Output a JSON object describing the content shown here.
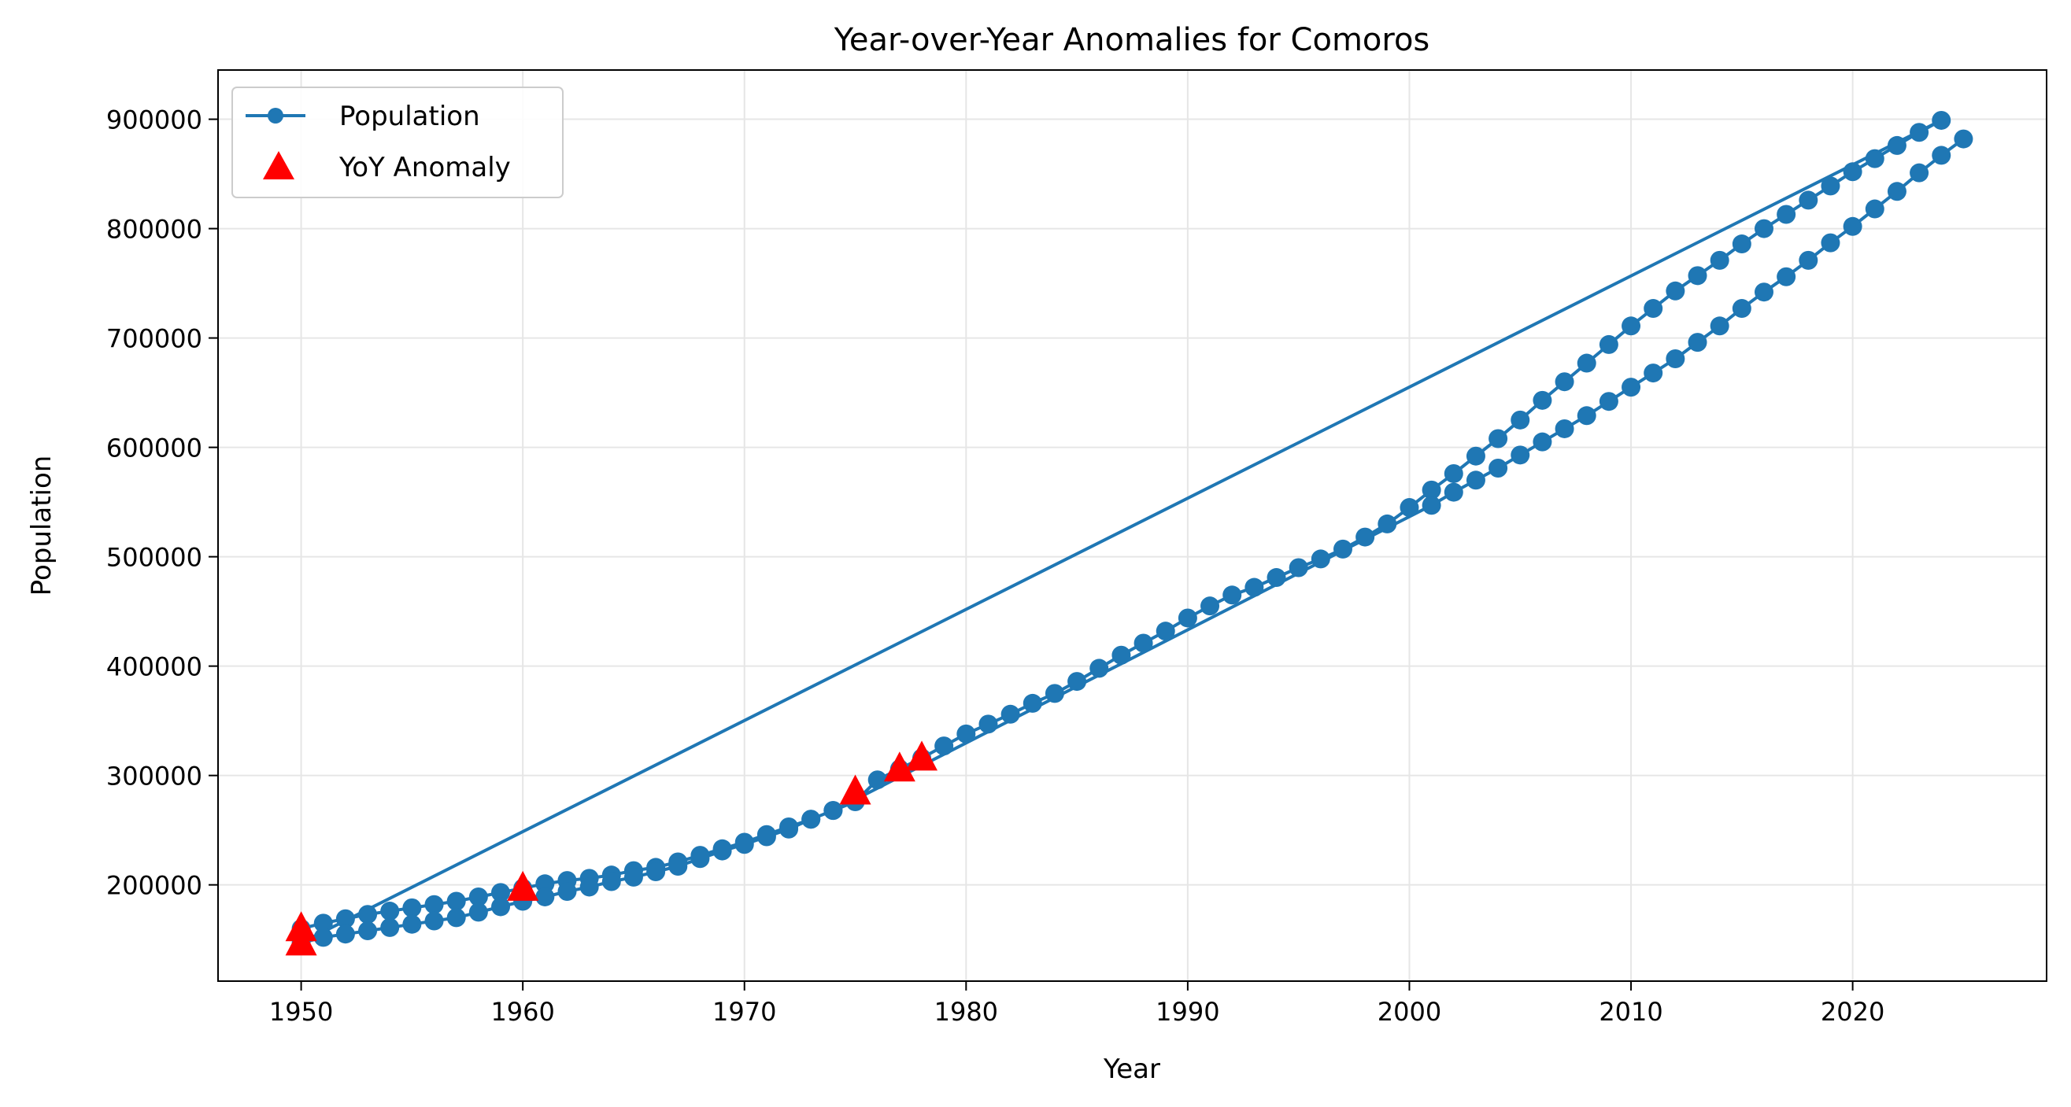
{
  "chart_data": {
    "type": "line",
    "title": "Year-over-Year Anomalies for Comoros",
    "xlabel": "Year",
    "ylabel": "Population",
    "xlim": [
      1946.25,
      2028.75
    ],
    "ylim": [
      112000,
      945000
    ],
    "x_ticks": [
      1950,
      1960,
      1970,
      1980,
      1990,
      2000,
      2010,
      2020
    ],
    "y_ticks": [
      200000,
      300000,
      400000,
      500000,
      600000,
      700000,
      800000,
      900000
    ],
    "grid": true,
    "legend_position": "top-left",
    "colors": {
      "line": "#1f77b4",
      "anomaly": "#ff0000",
      "grid": "#e6e6e6"
    },
    "series": [
      {
        "name": "Population",
        "style": "line-with-circle-markers",
        "color": "#1f77b4",
        "x": [
          1950,
          1951,
          1952,
          1953,
          1954,
          1955,
          1956,
          1957,
          1958,
          1959,
          1960,
          1961,
          1962,
          1963,
          1964,
          1965,
          1966,
          1967,
          1968,
          1969,
          1970,
          1971,
          1972,
          1973,
          1974,
          1975,
          1976,
          1977,
          1978,
          1979,
          1980,
          1981,
          1982,
          1983,
          1984,
          1985,
          1986,
          1987,
          1988,
          1989,
          1990,
          1991,
          1992,
          1993,
          1994,
          1995,
          1996,
          1997,
          1998,
          1999,
          2000,
          2001,
          2002,
          2003,
          2004,
          2005,
          2006,
          2007,
          2008,
          2009,
          2010,
          2011,
          2012,
          2013,
          2014,
          2015,
          2016,
          2017,
          2018,
          2019,
          2020,
          2021,
          2022,
          2023,
          2024,
          1950,
          1951,
          1952,
          1953,
          1954,
          1955,
          1956,
          1957,
          1958,
          1959,
          1960,
          1961,
          1962,
          1963,
          1964,
          1965,
          1966,
          1967,
          1968,
          1969,
          1970,
          1971,
          1972,
          1973,
          1974,
          1975,
          2001,
          2002,
          2003,
          2004,
          2005,
          2006,
          2007,
          2008,
          2009,
          2010,
          2011,
          2012,
          2013,
          2014,
          2015,
          2016,
          2017,
          2018,
          2019,
          2020,
          2021,
          2022,
          2023,
          2024,
          2025
        ],
        "y": [
          160000,
          165000,
          169000,
          173000,
          176000,
          179000,
          182000,
          185000,
          189000,
          193000,
          197000,
          201000,
          204000,
          206000,
          209000,
          213000,
          216000,
          221000,
          227000,
          233000,
          239000,
          246000,
          253000,
          260000,
          268000,
          276000,
          296000,
          306000,
          316000,
          327000,
          338000,
          347000,
          356000,
          366000,
          375000,
          386000,
          398000,
          410000,
          421000,
          432000,
          444000,
          455000,
          465000,
          472000,
          481000,
          490000,
          498000,
          507000,
          518000,
          530000,
          545000,
          561000,
          576000,
          592000,
          608000,
          625000,
          643000,
          660000,
          677000,
          694000,
          711000,
          727000,
          743000,
          757000,
          771000,
          786000,
          800000,
          813000,
          826000,
          839000,
          852000,
          864000,
          876000,
          888000,
          899000,
          147000,
          152000,
          155000,
          158000,
          161000,
          164000,
          167000,
          170000,
          175000,
          180000,
          185000,
          189000,
          194000,
          198000,
          203000,
          207000,
          212000,
          217000,
          224000,
          231000,
          237000,
          244000,
          251000,
          260000,
          268000,
          278000,
          547000,
          559000,
          570000,
          581000,
          593000,
          605000,
          617000,
          629000,
          642000,
          655000,
          668000,
          681000,
          696000,
          711000,
          727000,
          742000,
          756000,
          771000,
          787000,
          802000,
          818000,
          834000,
          851000,
          867000,
          882000
        ]
      },
      {
        "name": "YoY Anomaly",
        "style": "red-triangle-markers",
        "color": "#ff0000",
        "x": [
          1950,
          1950,
          1960,
          1975,
          1977,
          1978
        ],
        "y": [
          160000,
          147000,
          197000,
          285000,
          306000,
          316000
        ]
      }
    ]
  }
}
